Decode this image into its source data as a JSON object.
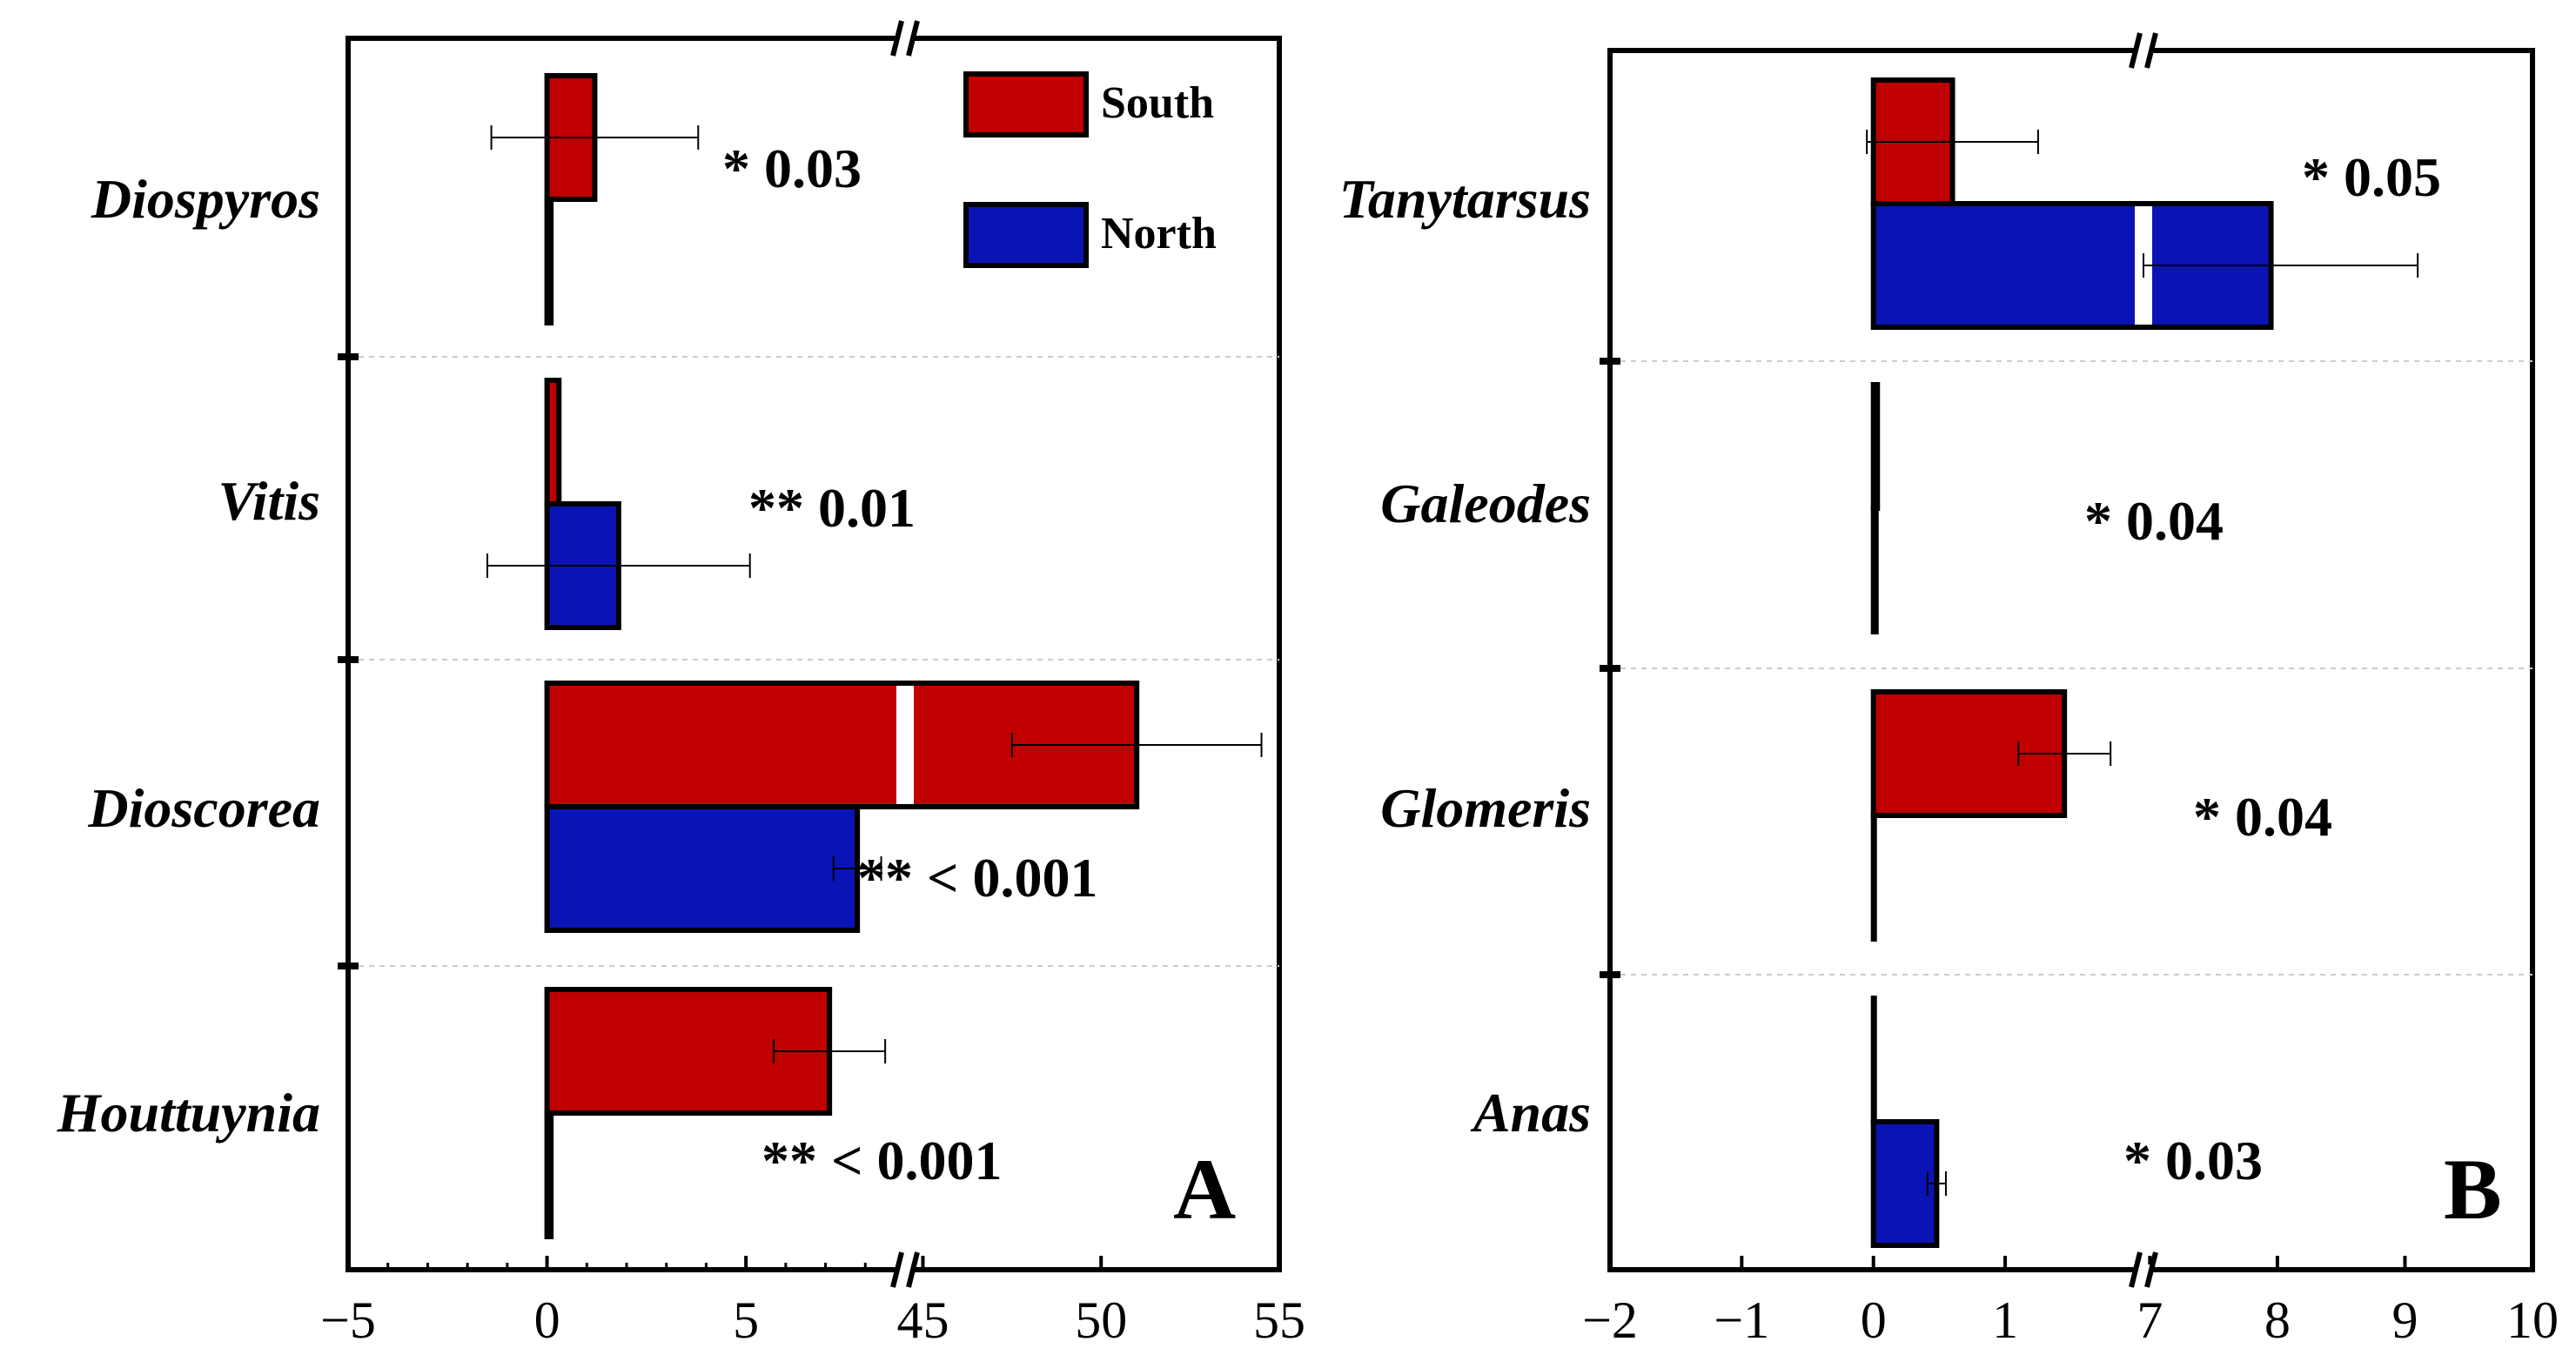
{
  "colors": {
    "south": "#c00000",
    "north": "#0a14b4",
    "outline": "#000000"
  },
  "legend": [
    {
      "name": "South",
      "color": "#c00000"
    },
    {
      "name": "North",
      "color": "#0a14b4"
    }
  ],
  "chart_data": [
    {
      "type": "bar",
      "orientation": "horizontal",
      "panel": "A",
      "categories": [
        "Diospyros",
        "Vitis",
        "Dioscorea",
        "Houttuynia"
      ],
      "axis": {
        "broken": true,
        "segments": [
          [
            -5,
            9
          ],
          [
            44.5,
            55
          ]
        ],
        "ticks": [
          "−5",
          "0",
          "5",
          "45",
          "50",
          "55"
        ],
        "tick_values": [
          -5,
          0,
          5,
          45,
          50,
          55
        ]
      },
      "series": [
        {
          "name": "South",
          "values": [
            1.2,
            0.3,
            51,
            7.1
          ],
          "errors": [
            2.6,
            0.0,
            3.5,
            1.4
          ]
        },
        {
          "name": "North",
          "values": [
            0.1,
            1.8,
            7.8,
            0.1
          ],
          "errors": [
            0.0,
            3.3,
            0.6,
            0.0
          ]
        }
      ],
      "annotations": [
        "*  0.03",
        "**  0.01",
        "**  <  0.001",
        "**  <  0.001"
      ]
    },
    {
      "type": "bar",
      "orientation": "horizontal",
      "panel": "B",
      "categories": [
        "Tanytarsus",
        "Galeodes",
        "Glomeris",
        "Anas"
      ],
      "axis": {
        "broken": true,
        "segments": [
          [
            -2,
            2.05
          ],
          [
            6.95,
            10
          ]
        ],
        "ticks": [
          "−2",
          "−1",
          "0",
          "1",
          "7",
          "8",
          "9",
          "10"
        ],
        "tick_values": [
          -2,
          -1,
          0,
          1,
          7,
          8,
          9,
          10
        ]
      },
      "series": [
        {
          "name": "South",
          "values": [
            0.6,
            0.03,
            1.45,
            0.0
          ],
          "errors": [
            0.65,
            0.0,
            0.35,
            0.0
          ]
        },
        {
          "name": "North",
          "values": [
            7.95,
            0.02,
            0.0,
            0.48
          ],
          "errors": [
            1.15,
            0.0,
            0.0,
            0.07
          ]
        }
      ],
      "annotations": [
        "*  0.05",
        "*  0.04",
        "*  0.04",
        "*  0.03"
      ]
    }
  ]
}
